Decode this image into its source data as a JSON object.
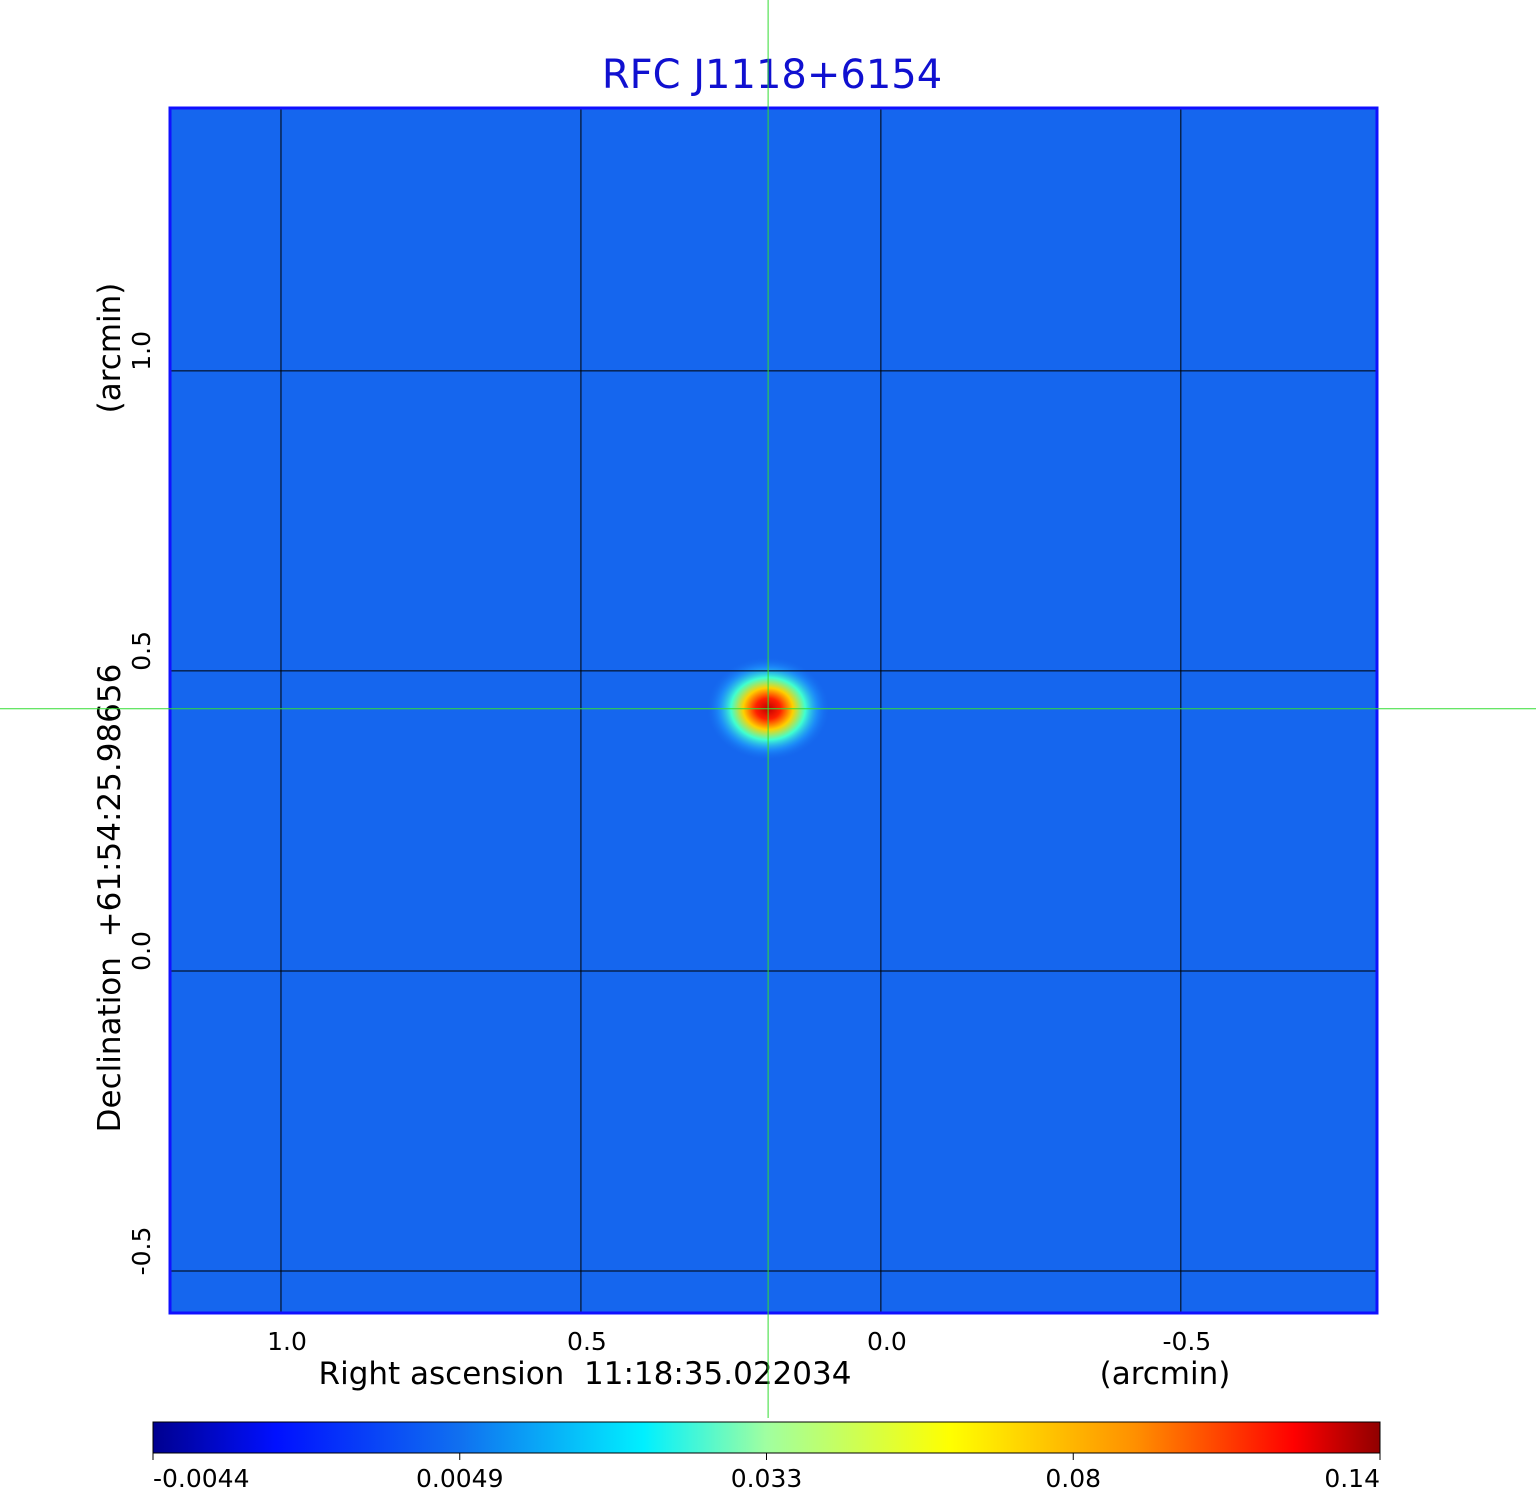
{
  "chart_data": {
    "type": "image",
    "title": "RFC J1118+6154",
    "xlabel": "Right ascension  11:18:35.022034",
    "xunit": "(arcmin)",
    "ylabel": "Declination  +61:54:25.98656",
    "yunit": "(arcmin)",
    "xlim": [
      1.185,
      -0.827
    ],
    "ylim": [
      -0.57,
      1.438
    ],
    "xticks": [
      {
        "value": 1,
        "label": "1.0"
      },
      0.5,
      {
        "value": 0,
        "label": "0.0"
      },
      -0.5
    ],
    "yticks": [
      -0.5,
      {
        "value": 0,
        "label": "0.0"
      },
      0.5,
      {
        "value": 1,
        "label": "1.0"
      }
    ],
    "grid": true,
    "crosshair": {
      "x": 0.188,
      "y": 0.437,
      "color": "#33dd33"
    },
    "colorbar": {
      "ticks": [
        -0.0044,
        0.0049,
        0.033,
        0.08,
        0.14
      ]
    }
  }
}
